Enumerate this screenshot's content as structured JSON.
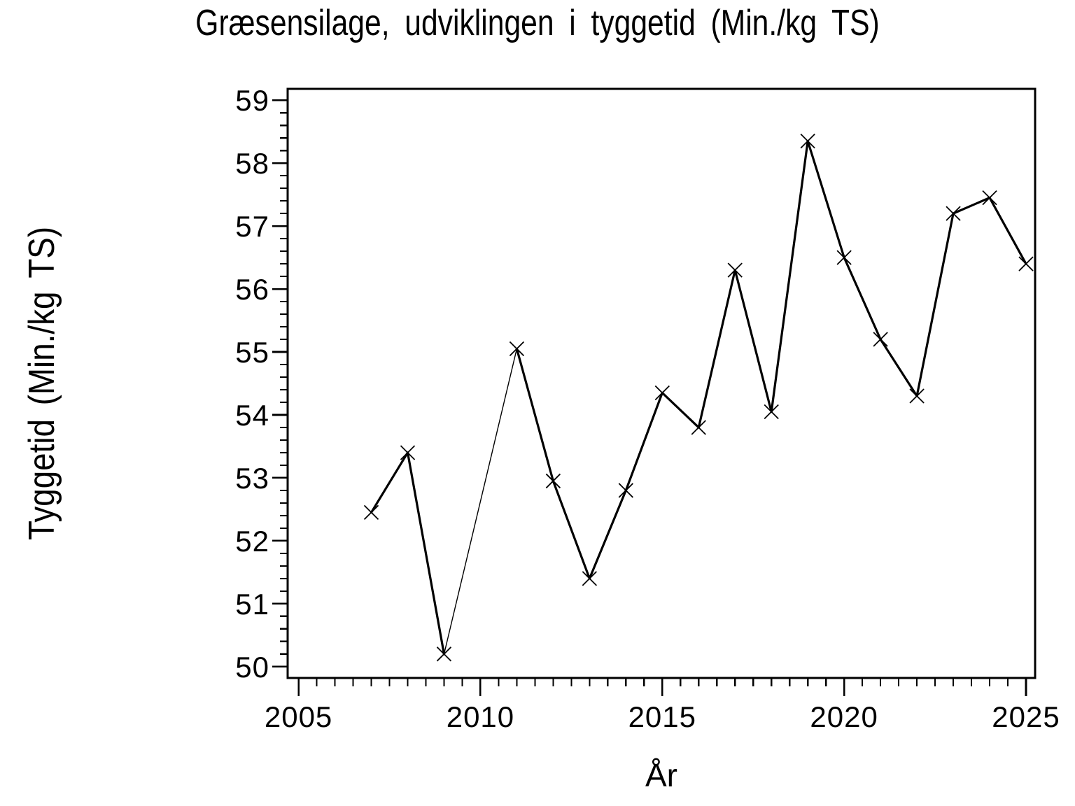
{
  "page": {
    "background": "#ffffff",
    "foreground": "#000000"
  },
  "chart_data": {
    "type": "line",
    "title": "Græsensilage, udviklingen i tyggetid (Min./kg TS)",
    "xlabel": "År",
    "ylabel": "Tyggetid (Min./kg TS)",
    "series": [
      {
        "name": "Tyggetid",
        "x": [
          2007,
          2008,
          2009,
          2011,
          2012,
          2013,
          2014,
          2015,
          2016,
          2017,
          2018,
          2019,
          2020,
          2021,
          2022,
          2023,
          2024,
          2025
        ],
        "y": [
          52.45,
          53.4,
          50.2,
          55.05,
          52.95,
          51.4,
          52.8,
          54.35,
          53.8,
          56.3,
          54.05,
          58.35,
          56.5,
          55.2,
          54.3,
          57.2,
          57.45,
          56.4
        ]
      }
    ],
    "missing_years": [
      2010
    ],
    "marker": "x",
    "line_color": "#000000",
    "background": "#ffffff",
    "grid": false,
    "legend": false,
    "xlim": [
      2004.7,
      2025.25
    ],
    "ylim": [
      49.82,
      59.18
    ],
    "x_major_ticks": [
      2005,
      2010,
      2015,
      2020,
      2025
    ],
    "x_tick_labels": [
      "2005",
      "2010",
      "2015",
      "2020",
      "2025"
    ],
    "x_minor_step": 0.5,
    "y_major_ticks": [
      50,
      51,
      52,
      53,
      54,
      55,
      56,
      57,
      58,
      59
    ],
    "y_tick_labels": [
      "50",
      "51",
      "52",
      "53",
      "54",
      "55",
      "56",
      "57",
      "58",
      "59"
    ],
    "y_minor_step": 0.2
  }
}
